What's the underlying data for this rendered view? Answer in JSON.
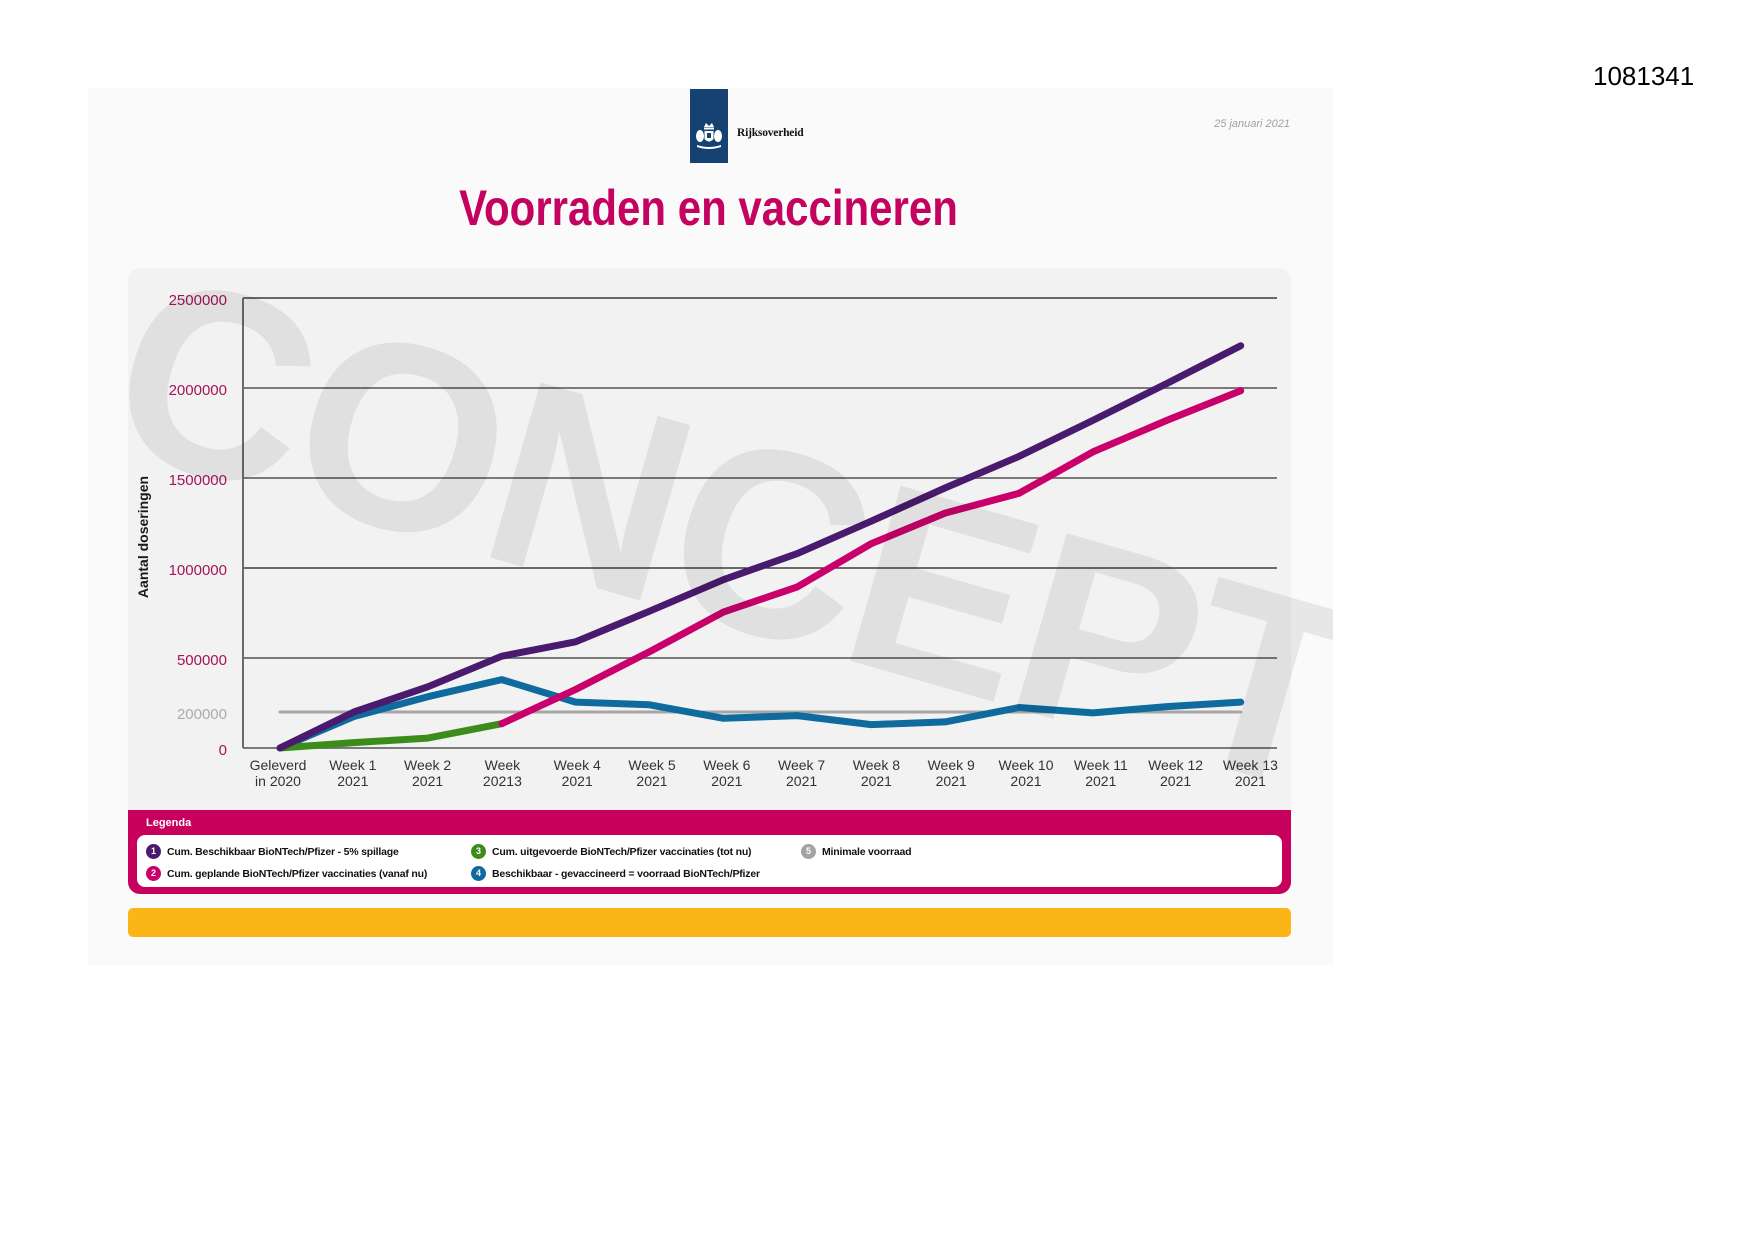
{
  "document": {
    "id": "1081341"
  },
  "header": {
    "logo_icon": "rijksoverheid-crest-icon",
    "logo_text": "Rijksoverheid",
    "date": "25 januari 2021",
    "title": "Voorraden en vaccineren"
  },
  "watermark": {
    "text": "CONCEPT"
  },
  "legend": {
    "title": "Legenda",
    "items": [
      {
        "number": "1",
        "label": "Cum. Beschikbaar BioNTech/Pfizer - 5% spillage",
        "color": "#4a1a6e"
      },
      {
        "number": "2",
        "label": "Cum. geplande BioNTech/Pfizer vaccinaties (vanaf nu)",
        "color": "#c9006b"
      },
      {
        "number": "3",
        "label": "Cum. uitgevoerde BioNTech/Pfizer vaccinaties (tot nu)",
        "color": "#3c8c1c"
      },
      {
        "number": "4",
        "label": "Beschikbaar - gevaccineerd = voorraad BioNTech/Pfizer",
        "color": "#0f6a9e"
      },
      {
        "number": "5",
        "label": "Minimale voorraad",
        "color": "#a3a3a3"
      }
    ]
  },
  "colors": {
    "brand_magenta": "#c6005c",
    "brand_blue": "#154273",
    "title": "#c4025f",
    "accent_yellow": "#fbb516",
    "panel": "#f2f2f2"
  },
  "chart_data": {
    "type": "line",
    "title": "Voorraden en vaccineren",
    "xlabel": "",
    "ylabel": "Aantal doseringen",
    "ylim": [
      0,
      2500000
    ],
    "yticks": [
      0,
      200000,
      500000,
      1000000,
      1500000,
      2000000,
      2500000
    ],
    "ytick_labels": [
      "0",
      "200000",
      "500000",
      "1000000",
      "1500000",
      "2000000",
      "2500000"
    ],
    "ytick_label_colors": [
      "#a3145a",
      "#ababab",
      "#a3145a",
      "#a3145a",
      "#a3145a",
      "#a3145a",
      "#a3145a"
    ],
    "grid": true,
    "gridlines": [
      {
        "value": 0,
        "color": "#7a7a7a",
        "width": 2
      },
      {
        "value": 500000,
        "color": "#7a7a7a",
        "width": 2
      },
      {
        "value": 1000000,
        "color": "#1a1a1a",
        "width": 1.2
      },
      {
        "value": 1500000,
        "color": "#7a7a7a",
        "width": 2
      },
      {
        "value": 2000000,
        "color": "#7a7a7a",
        "width": 2
      },
      {
        "value": 2500000,
        "color": "#3a3a3a",
        "width": 1.5
      }
    ],
    "legend_position": "bottom",
    "categories": [
      "Geleverd in 2020",
      "Week 1 2021",
      "Week 2 2021",
      "Week 20213",
      "Week 4 2021",
      "Week 5 2021",
      "Week 6 2021",
      "Week 7 2021",
      "Week 8 2021",
      "Week 9 2021",
      "Week 10 2021",
      "Week 11 2021",
      "Week 12 2021",
      "Week 13 2021"
    ],
    "category_labels": [
      [
        "Geleverd",
        "in 2020"
      ],
      [
        "Week 1",
        "2021"
      ],
      [
        "Week 2",
        "2021"
      ],
      [
        "Week",
        "20213"
      ],
      [
        "Week 4",
        "2021"
      ],
      [
        "Week 5",
        "2021"
      ],
      [
        "Week 6",
        "2021"
      ],
      [
        "Week 7",
        "2021"
      ],
      [
        "Week 8",
        "2021"
      ],
      [
        "Week 9",
        "2021"
      ],
      [
        "Week 10",
        "2021"
      ],
      [
        "Week 11",
        "2021"
      ],
      [
        "Week 12",
        "2021"
      ],
      [
        "Week 13",
        "2021"
      ]
    ],
    "series": [
      {
        "key": "cum-beschikbaar",
        "name": "Cum. Beschikbaar BioNTech/Pfizer - 5% spillage",
        "color": "#4a1a6e",
        "line_width": 7,
        "values": [
          0,
          200000,
          340000,
          510000,
          590000,
          760000,
          935000,
          1080000,
          1260000,
          1445000,
          1620000,
          1820000,
          2025000,
          2235000
        ]
      },
      {
        "key": "cum-geplande",
        "name": "Cum. geplande BioNTech/Pfizer vaccinaties (vanaf nu)",
        "color": "#c9006b",
        "line_width": 7,
        "values": [
          null,
          null,
          null,
          135000,
          325000,
          535000,
          755000,
          895000,
          1135000,
          1305000,
          1415000,
          1645000,
          1820000,
          1985000
        ]
      },
      {
        "key": "cum-uitgevoerde",
        "name": "Cum. uitgevoerde BioNTech/Pfizer vaccinaties (tot nu)",
        "color": "#3c8c1c",
        "line_width": 7,
        "values": [
          0,
          30000,
          55000,
          135000,
          null,
          null,
          null,
          null,
          null,
          null,
          null,
          null,
          null,
          null
        ]
      },
      {
        "key": "voorraad",
        "name": "Beschikbaar - gevaccineerd = voorraad BioNTech/Pfizer",
        "color": "#0f6a9e",
        "line_width": 7,
        "values": [
          0,
          175000,
          285000,
          380000,
          255000,
          240000,
          165000,
          180000,
          130000,
          145000,
          225000,
          195000,
          230000,
          255000
        ]
      },
      {
        "key": "minimale-voorraad",
        "name": "Minimale voorraad",
        "color": "#a6a6a6",
        "line_width": 3,
        "values": [
          200000,
          200000,
          200000,
          200000,
          200000,
          200000,
          200000,
          200000,
          200000,
          200000,
          200000,
          200000,
          200000,
          200000
        ]
      }
    ]
  }
}
